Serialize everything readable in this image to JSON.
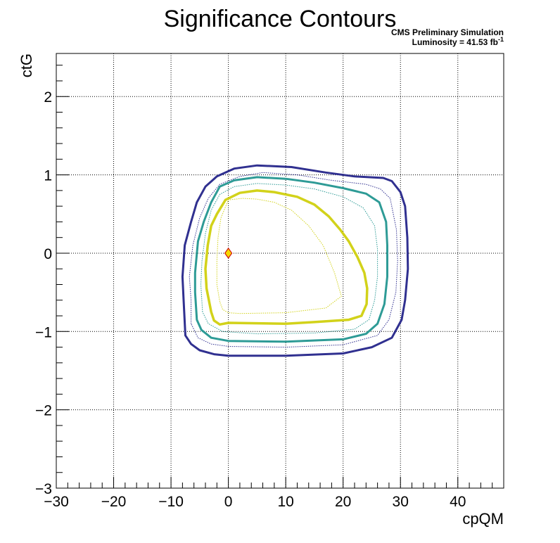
{
  "chart_data": {
    "type": "contour",
    "title": "Significance Contours",
    "xlabel": "cpQM",
    "ylabel": "ctG",
    "annotation_line1": "CMS Preliminary Simulation",
    "annotation_line2_prefix": "Luminosity = 41.53 fb",
    "annotation_line2_sup": "-1",
    "xlim": [
      -30,
      48
    ],
    "ylim": [
      -3,
      2.55
    ],
    "x_ticks": [
      -30,
      -20,
      -10,
      0,
      10,
      20,
      30,
      40
    ],
    "x_tick_labels": [
      "−30",
      "−20",
      "−10",
      "0",
      "10",
      "20",
      "30",
      "40"
    ],
    "y_ticks": [
      -3,
      -2,
      -1,
      0,
      1,
      2
    ],
    "y_tick_labels": [
      "−3",
      "−2",
      "−1",
      "0",
      "1",
      "2"
    ],
    "grid": true,
    "best_fit_point": {
      "x": 0,
      "y": 0,
      "color": "#f5d800",
      "edge": "#d01010"
    },
    "contours": [
      {
        "color": "#303090",
        "width": 3,
        "style": "solid",
        "points": [
          [
            -7.5,
            -1.05
          ],
          [
            -7.8,
            -0.6
          ],
          [
            -8.0,
            -0.3
          ],
          [
            -7.6,
            0.1
          ],
          [
            -6.5,
            0.4
          ],
          [
            -5.5,
            0.65
          ],
          [
            -4.0,
            0.85
          ],
          [
            -2.0,
            0.98
          ],
          [
            1.0,
            1.08
          ],
          [
            5.0,
            1.12
          ],
          [
            11.0,
            1.1
          ],
          [
            17.0,
            1.03
          ],
          [
            22.0,
            0.98
          ],
          [
            27.0,
            0.96
          ],
          [
            28.5,
            0.92
          ],
          [
            30.0,
            0.78
          ],
          [
            30.8,
            0.6
          ],
          [
            31.2,
            0.2
          ],
          [
            31.3,
            -0.2
          ],
          [
            30.8,
            -0.6
          ],
          [
            30.2,
            -0.85
          ],
          [
            28.5,
            -1.08
          ],
          [
            25.0,
            -1.2
          ],
          [
            20.0,
            -1.28
          ],
          [
            10.0,
            -1.31
          ],
          [
            0.0,
            -1.31
          ],
          [
            -2.5,
            -1.29
          ],
          [
            -5.0,
            -1.24
          ],
          [
            -6.5,
            -1.16
          ]
        ]
      },
      {
        "color": "#303090",
        "width": 1,
        "style": "dotted",
        "points": [
          [
            -6.5,
            -0.9
          ],
          [
            -6.5,
            -0.6
          ],
          [
            -6.8,
            -0.3
          ],
          [
            -6.2,
            0.1
          ],
          [
            -5.0,
            0.45
          ],
          [
            -3.5,
            0.7
          ],
          [
            -1.5,
            0.88
          ],
          [
            2.0,
            0.98
          ],
          [
            6.0,
            1.03
          ],
          [
            12.0,
            1.0
          ],
          [
            18.0,
            0.93
          ],
          [
            24.0,
            0.88
          ],
          [
            26.5,
            0.82
          ],
          [
            28.2,
            0.7
          ],
          [
            29.3,
            0.3
          ],
          [
            29.5,
            -0.1
          ],
          [
            29.2,
            -0.5
          ],
          [
            28.0,
            -0.85
          ],
          [
            26.0,
            -1.05
          ],
          [
            20.0,
            -1.17
          ],
          [
            10.0,
            -1.2
          ],
          [
            0.0,
            -1.19
          ],
          [
            -3.0,
            -1.16
          ],
          [
            -5.3,
            -1.08
          ]
        ]
      },
      {
        "color": "#2e9b96",
        "width": 3,
        "style": "solid",
        "points": [
          [
            -5.5,
            -0.85
          ],
          [
            -5.8,
            -0.5
          ],
          [
            -5.8,
            -0.25
          ],
          [
            -5.3,
            0.15
          ],
          [
            -4.3,
            0.4
          ],
          [
            -3.0,
            0.65
          ],
          [
            -1.5,
            0.85
          ],
          [
            1.0,
            0.93
          ],
          [
            5.0,
            0.97
          ],
          [
            10.0,
            0.95
          ],
          [
            15.0,
            0.9
          ],
          [
            20.0,
            0.83
          ],
          [
            24.0,
            0.76
          ],
          [
            26.3,
            0.65
          ],
          [
            27.5,
            0.4
          ],
          [
            27.7,
            0.1
          ],
          [
            27.7,
            -0.3
          ],
          [
            27.2,
            -0.65
          ],
          [
            26.0,
            -0.9
          ],
          [
            24.0,
            -1.03
          ],
          [
            20.0,
            -1.1
          ],
          [
            10.0,
            -1.13
          ],
          [
            0.0,
            -1.12
          ],
          [
            -3.0,
            -1.08
          ],
          [
            -4.7,
            -0.98
          ]
        ]
      },
      {
        "color": "#2e9b96",
        "width": 1,
        "style": "dotted",
        "points": [
          [
            -4.5,
            -0.75
          ],
          [
            -4.8,
            -0.4
          ],
          [
            -4.6,
            -0.1
          ],
          [
            -4.0,
            0.25
          ],
          [
            -3.0,
            0.55
          ],
          [
            -1.5,
            0.75
          ],
          [
            1.0,
            0.85
          ],
          [
            5.0,
            0.89
          ],
          [
            10.0,
            0.87
          ],
          [
            15.0,
            0.82
          ],
          [
            20.0,
            0.72
          ],
          [
            23.5,
            0.58
          ],
          [
            25.5,
            0.35
          ],
          [
            26.0,
            0.05
          ],
          [
            26.0,
            -0.3
          ],
          [
            25.5,
            -0.6
          ],
          [
            24.5,
            -0.85
          ],
          [
            22.0,
            -0.97
          ],
          [
            15.0,
            -1.02
          ],
          [
            5.0,
            -1.03
          ],
          [
            -1.0,
            -1.0
          ],
          [
            -3.5,
            -0.9
          ]
        ]
      },
      {
        "color": "#d2d21a",
        "width": 3.5,
        "style": "solid",
        "points": [
          [
            -3.0,
            -0.75
          ],
          [
            -3.8,
            -0.45
          ],
          [
            -4.0,
            -0.2
          ],
          [
            -3.6,
            0.1
          ],
          [
            -3.0,
            0.35
          ],
          [
            -2.0,
            0.5
          ],
          [
            -0.5,
            0.68
          ],
          [
            2.0,
            0.77
          ],
          [
            5.0,
            0.8
          ],
          [
            8.0,
            0.78
          ],
          [
            12.0,
            0.72
          ],
          [
            15.0,
            0.62
          ],
          [
            17.5,
            0.47
          ],
          [
            19.5,
            0.3
          ],
          [
            21.0,
            0.15
          ],
          [
            22.5,
            -0.05
          ],
          [
            23.7,
            -0.25
          ],
          [
            24.2,
            -0.45
          ],
          [
            24.1,
            -0.65
          ],
          [
            23.2,
            -0.8
          ],
          [
            21.0,
            -0.85
          ],
          [
            15.0,
            -0.88
          ],
          [
            10.0,
            -0.9
          ],
          [
            0.0,
            -0.89
          ],
          [
            -1.5,
            -0.91
          ],
          [
            -2.5,
            -0.86
          ]
        ]
      },
      {
        "color": "#d2d21a",
        "width": 1,
        "style": "dotted",
        "points": [
          [
            -1.5,
            -0.62
          ],
          [
            -2.0,
            -0.4
          ],
          [
            -2.0,
            -0.1
          ],
          [
            -1.8,
            0.2
          ],
          [
            -1.3,
            0.45
          ],
          [
            0.0,
            0.68
          ],
          [
            2.5,
            0.7
          ],
          [
            5.0,
            0.69
          ],
          [
            8.0,
            0.65
          ],
          [
            11.0,
            0.55
          ],
          [
            14.0,
            0.35
          ],
          [
            16.5,
            0.1
          ],
          [
            18.5,
            -0.25
          ],
          [
            19.7,
            -0.55
          ],
          [
            17.0,
            -0.7
          ],
          [
            10.0,
            -0.76
          ],
          [
            2.0,
            -0.77
          ],
          [
            0.0,
            -0.76
          ],
          [
            -1.0,
            -0.72
          ]
        ]
      }
    ]
  }
}
